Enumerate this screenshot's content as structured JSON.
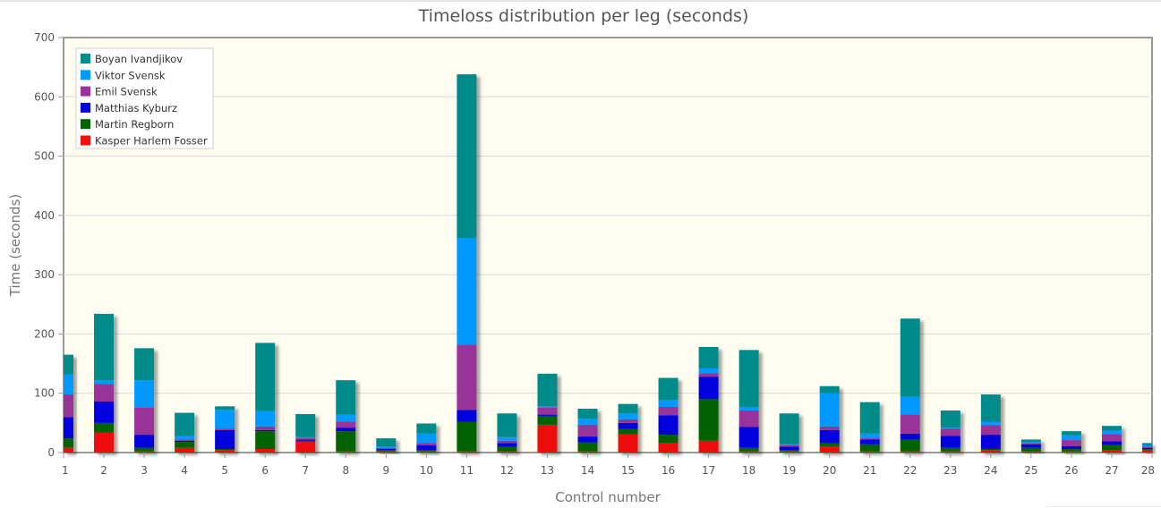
{
  "chart_data": {
    "type": "bar",
    "stacked": true,
    "title": "Timeloss distribution per leg (seconds)",
    "xlabel": "Control number",
    "ylabel": "Time (seconds)",
    "ylim": [
      0,
      700
    ],
    "yticks": [
      0,
      100,
      200,
      300,
      400,
      500,
      600,
      700
    ],
    "grid": true,
    "legend_position": "top-left",
    "categories": [
      "1",
      "2",
      "3",
      "4",
      "5",
      "6",
      "7",
      "8",
      "9",
      "10",
      "11",
      "12",
      "13",
      "14",
      "15",
      "16",
      "17",
      "18",
      "19",
      "20",
      "21",
      "22",
      "23",
      "24",
      "25",
      "26",
      "27",
      "28"
    ],
    "series": [
      {
        "name": "Kasper Harlem Fosser",
        "color": "#ee1111",
        "values": [
          8,
          34,
          2,
          8,
          4,
          6,
          18,
          2,
          2,
          2,
          2,
          2,
          47,
          2,
          31,
          16,
          20,
          2,
          2,
          10,
          2,
          2,
          2,
          4,
          2,
          2,
          4,
          4
        ]
      },
      {
        "name": "Martin Regborn",
        "color": "#006400",
        "values": [
          16,
          16,
          6,
          10,
          2,
          30,
          2,
          34,
          2,
          2,
          50,
          8,
          15,
          15,
          9,
          14,
          70,
          6,
          2,
          6,
          12,
          20,
          6,
          2,
          6,
          4,
          9,
          2
        ]
      },
      {
        "name": "Matthias Kyburz",
        "color": "#0000dd",
        "values": [
          36,
          36,
          22,
          2,
          32,
          2,
          2,
          6,
          2,
          8,
          20,
          6,
          2,
          10,
          10,
          33,
          38,
          35,
          6,
          22,
          8,
          10,
          20,
          24,
          6,
          5,
          6,
          2
        ]
      },
      {
        "name": "Emil Svensk",
        "color": "#993399",
        "values": [
          38,
          30,
          46,
          2,
          2,
          6,
          2,
          10,
          2,
          4,
          110,
          4,
          12,
          20,
          6,
          14,
          6,
          28,
          2,
          6,
          2,
          32,
          12,
          16,
          2,
          10,
          12,
          2
        ]
      },
      {
        "name": "Viktor Svensk",
        "color": "#0099ff",
        "values": [
          34,
          6,
          46,
          6,
          32,
          26,
          2,
          12,
          2,
          16,
          180,
          6,
          2,
          10,
          10,
          12,
          8,
          6,
          2,
          56,
          8,
          30,
          2,
          6,
          2,
          8,
          6,
          2
        ]
      },
      {
        "name": "Boyan Ivandjikov",
        "color": "#008b8b",
        "values": [
          33,
          112,
          54,
          39,
          6,
          115,
          39,
          58,
          14,
          17,
          276,
          40,
          55,
          17,
          16,
          37,
          36,
          96,
          52,
          12,
          53,
          132,
          29,
          46,
          4,
          7,
          8,
          4
        ]
      }
    ]
  }
}
